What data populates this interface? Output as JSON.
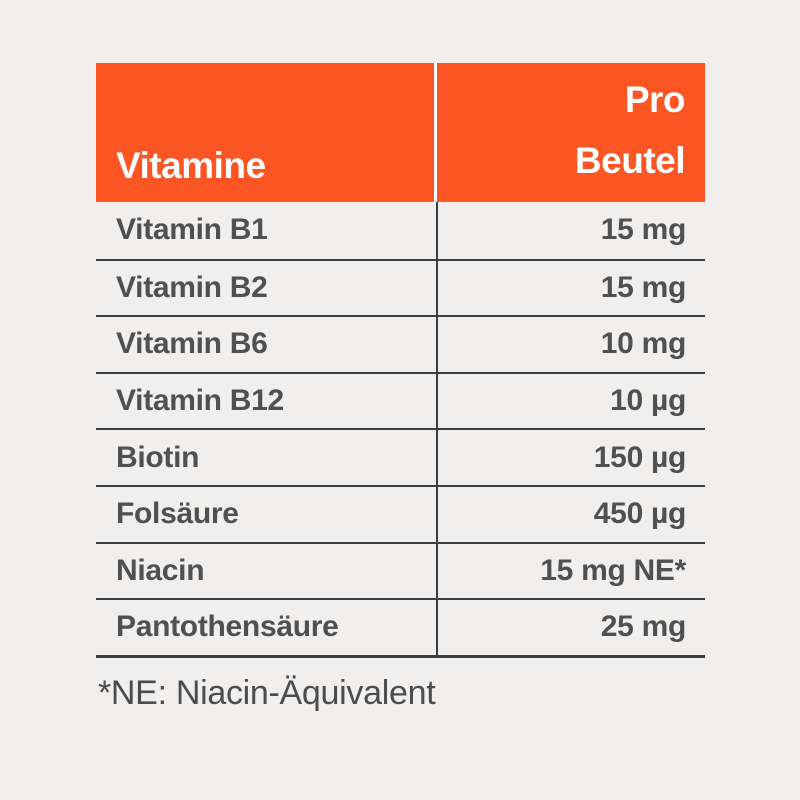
{
  "page": {
    "background_color": "#F0EFED",
    "accent_color": "#FA5523",
    "text_color": "#4F5052",
    "line_color": "#3D3E40"
  },
  "table": {
    "header": {
      "col1_label": "Vitamine",
      "col2_line1": "Pro",
      "col2_line2": "Beutel"
    },
    "rows": [
      {
        "name": "Vitamin B1",
        "value": "15 mg"
      },
      {
        "name": "Vitamin B2",
        "value": "15 mg"
      },
      {
        "name": "Vitamin B6",
        "value": "10 mg"
      },
      {
        "name": "Vitamin B12",
        "value": "10 µg"
      },
      {
        "name": "Biotin",
        "value": "150 µg"
      },
      {
        "name": "Folsäure",
        "value": "450 µg"
      },
      {
        "name": "Niacin",
        "value": "15 mg NE*"
      },
      {
        "name": "Pantothensäure",
        "value": "25 mg"
      }
    ]
  },
  "footnote": "*NE: Niacin-Äquivalent",
  "chart_data": {
    "type": "table",
    "title": "",
    "columns": [
      "Vitamine",
      "Pro Beutel"
    ],
    "rows": [
      [
        "Vitamin B1",
        "15 mg"
      ],
      [
        "Vitamin B2",
        "15 mg"
      ],
      [
        "Vitamin B6",
        "10 mg"
      ],
      [
        "Vitamin B12",
        "10 µg"
      ],
      [
        "Biotin",
        "150 µg"
      ],
      [
        "Folsäure",
        "450 µg"
      ],
      [
        "Niacin",
        "15 mg NE*"
      ],
      [
        "Pantothensäure",
        "25 mg"
      ]
    ],
    "footnote": "*NE: Niacin-Äquivalent",
    "layout_hints": {
      "header_background": "#FA5523",
      "header_text_color": "#FFFFFF",
      "value_alignment": "right"
    }
  }
}
